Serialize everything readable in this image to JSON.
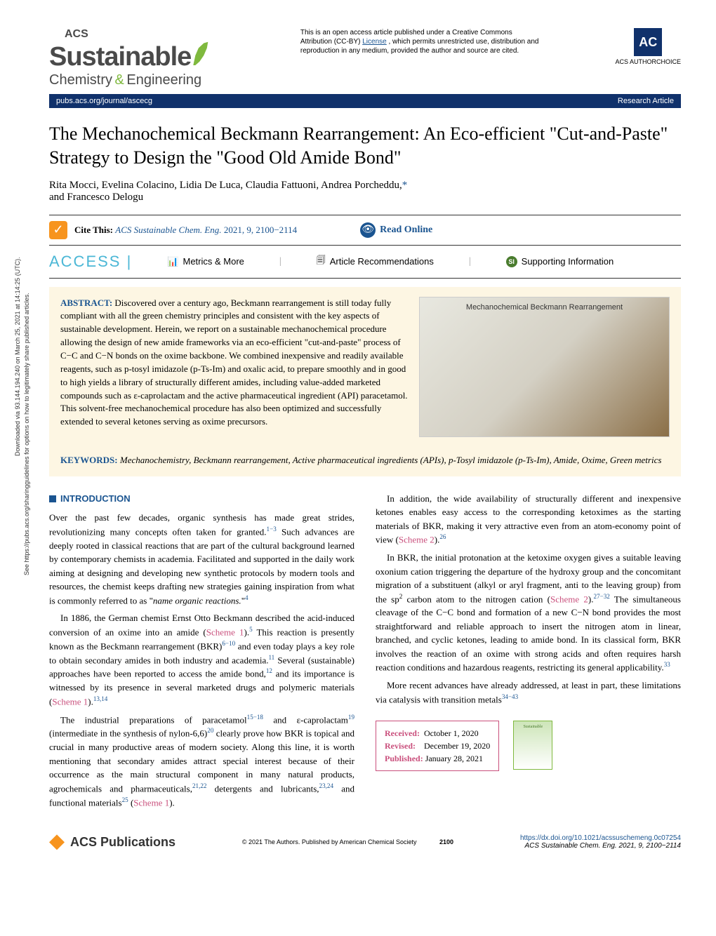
{
  "license": {
    "prefix": "This is an open access article published under a Creative Commons Attribution (CC-BY) ",
    "link_text": "License",
    "suffix": ", which permits unrestricted use, distribution and reproduction in any medium, provided the author and source are cited."
  },
  "branding": {
    "acs": "ACS",
    "sustainable": "Sustainable",
    "chem": "Chemistry",
    "amp": "&",
    "eng": "Engineering",
    "ac_badge": "AC",
    "authorchoice": "ACS AUTHORCHOICE"
  },
  "bar": {
    "url": "pubs.acs.org/journal/ascecg",
    "type": "Research Article"
  },
  "title": "The Mechanochemical Beckmann Rearrangement: An Eco-efficient \"Cut-and-Paste\" Strategy to Design the \"Good Old Amide Bond\"",
  "authors": {
    "list": "Rita Mocci, Evelina Colacino, Lidia De Luca, Claudia Fattuoni, Andrea Porcheddu,",
    "star": "*",
    "and": "and Francesco Delogu"
  },
  "cite": {
    "label": "Cite This:",
    "journal": "ACS Sustainable Chem. Eng.",
    "ref": "2021, 9, 2100−2114",
    "read": "Read Online"
  },
  "actions": {
    "access": "ACCESS",
    "metrics": "Metrics & More",
    "recs": "Article Recommendations",
    "si": "Supporting Information",
    "si_badge": "SI"
  },
  "abstract": {
    "label": "ABSTRACT:",
    "text": "Discovered over a century ago, Beckmann rearrangement is still today fully compliant with all the green chemistry principles and consistent with the key aspects of sustainable development. Herein, we report on a sustainable mechanochemical procedure allowing the design of new amide frameworks via an eco-efficient \"cut-and-paste\" process of C−C and C−N bonds on the oxime backbone. We combined inexpensive and readily available reagents, such as p-tosyl imidazole (p-Ts-Im) and oxalic acid, to prepare smoothly and in good to high yields a library of structurally different amides, including value-added marketed compounds such as ε-caprolactam and the active pharmaceutical ingredient (API) paracetamol. This solvent-free mechanochemical procedure has also been optimized and successfully extended to several ketones serving as oxime precursors.",
    "img_title": "Mechanochemical Beckmann Rearrangement"
  },
  "keywords": {
    "label": "KEYWORDS:",
    "text": "Mechanochemistry, Beckmann rearrangement, Active pharmaceutical ingredients (APIs), p-Tosyl imidazole (p-Ts-Im), Amide, Oxime, Green metrics"
  },
  "section": {
    "intro": "INTRODUCTION"
  },
  "body": {
    "col1": {
      "p1a": "Over the past few decades, organic synthesis has made great strides, revolutionizing many concepts often taken for granted.",
      "p1_ref1": "1−3",
      "p1b": " Such advances are deeply rooted in classical reactions that are part of the cultural background learned by contemporary chemists in academia. Facilitated and supported in the daily work aiming at designing and developing new synthetic protocols by modern tools and resources, the chemist keeps drafting new strategies gaining inspiration from what is commonly referred to as \"",
      "p1_i": "name organic reactions.",
      "p1c": "\"",
      "p1_ref2": "4",
      "p2a": "In 1886, the German chemist Ernst Otto Beckmann described the acid-induced conversion of an oxime into an amide (",
      "p2_s1": "Scheme 1",
      "p2b": ").",
      "p2_ref1": "5",
      "p2c": " This reaction is presently known as the Beckmann rearrangement (BKR)",
      "p2_ref2": "6−10",
      "p2d": " and even today plays a key role to obtain secondary amides in both industry and academia.",
      "p2_ref3": "11",
      "p2e": " Several (sustainable) approaches have been reported to access the amide bond,",
      "p2_ref4": "12",
      "p2f": " and its importance is witnessed by its presence in several marketed drugs and polymeric materials (",
      "p2_s2": "Scheme 1",
      "p2g": ").",
      "p2_ref5": "13,14",
      "p3a": "The industrial preparations of paracetamol",
      "p3_ref1": "15−18",
      "p3b": " and ε-caprolactam",
      "p3_ref2": "19",
      "p3c": " (intermediate in the synthesis of nylon-6,6)",
      "p3_ref3": "20",
      "p3d": " clearly prove how BKR is topical and crucial in many productive areas of modern society. Along this line, it is worth mentioning that secondary amides attract special interest because of their occurrence as the main structural component in many natural products, agrochemicals and pharmaceuticals,",
      "p3_ref4": "21,22",
      "p3e": " detergents and lubricants,",
      "p3_ref5": "23,24",
      "p3f": " and functional materials",
      "p3_ref6": "25",
      "p3g": " (",
      "p3_s1": "Scheme 1",
      "p3h": ")."
    },
    "col2": {
      "p1a": "In addition, the wide availability of structurally different and inexpensive ketones enables easy access to the corresponding ketoximes as the starting materials of BKR, making it very attractive even from an atom-economy point of view (",
      "p1_s1": "Scheme 2",
      "p1b": ").",
      "p1_ref1": "26",
      "p2a": "In BKR, the initial protonation at the ketoxime oxygen gives a suitable leaving oxonium cation triggering the departure of the hydroxy group and the concomitant migration of a substituent (alkyl or aryl fragment, anti to the leaving group) from the sp",
      "p2_sup": "2",
      "p2b": " carbon atom to the nitrogen cation (",
      "p2_s1": "Scheme 2",
      "p2c": ").",
      "p2_ref1": "27−32",
      "p2d": " The simultaneous cleavage of the C−C bond and formation of a new C−N bond provides the most straightforward and reliable approach to insert the nitrogen atom in linear, branched, and cyclic ketones, leading to amide bond. In its classical form, BKR involves the reaction of an oxime with strong acids and often requires harsh reaction conditions and hazardous reagents, restricting its general applicability.",
      "p2_ref2": "33",
      "p3a": "More recent advances have already addressed, at least in part, these limitations via catalysis with transition metals",
      "p3_ref1": "34−43"
    }
  },
  "received": {
    "r_label": "Received:",
    "r_val": "October 1, 2020",
    "v_label": "Revised:",
    "v_val": "December 19, 2020",
    "p_label": "Published:",
    "p_val": "January 28, 2021"
  },
  "thumb": "Sustainable",
  "footer": {
    "pub": "ACS Publications",
    "copyright": "© 2021 The Authors. Published by American Chemical Society",
    "page": "2100",
    "doi": "https://dx.doi.org/10.1021/acssuschemeng.0c07254",
    "ref": "ACS Sustainable Chem. Eng. 2021, 9, 2100−2114"
  },
  "sidebar": {
    "line1": "Downloaded via 93.144.194.240 on March 25, 2021 at 14:14:25 (UTC).",
    "line2": "See https://pubs.acs.org/sharingguidelines for options on how to legitimately share published articles."
  },
  "colors": {
    "link_blue": "#1a5490",
    "scheme_pink": "#c94f7c",
    "navy": "#10316b",
    "green": "#7fb93e",
    "orange": "#f7941e",
    "cream": "#fdf6e3",
    "access_cyan": "#4bb7d6",
    "si_green": "#4a7c2e"
  }
}
